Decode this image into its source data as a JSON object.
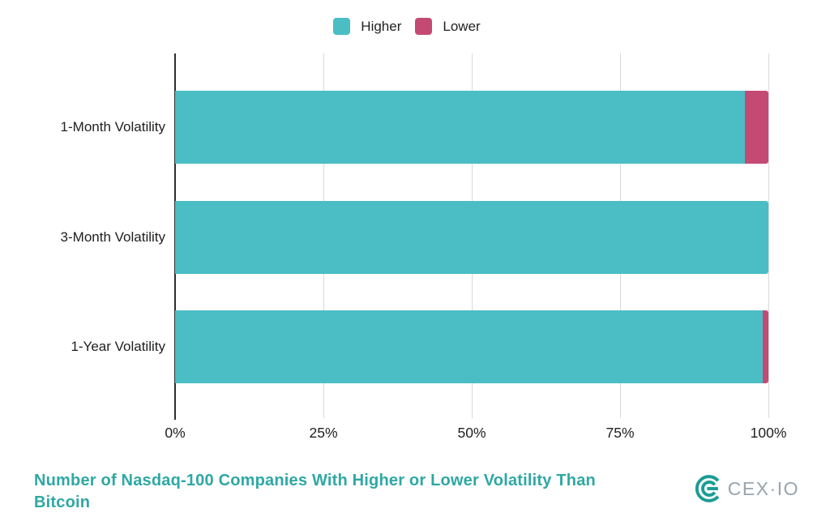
{
  "legend": {
    "items": [
      {
        "label": "Higher",
        "color": "#4abdc5"
      },
      {
        "label": "Lower",
        "color": "#c44a73"
      }
    ]
  },
  "chart_data": {
    "type": "bar",
    "orientation": "horizontal",
    "stacked": true,
    "categories": [
      "1-Month Volatility",
      "3-Month Volatility",
      "1-Year Volatility"
    ],
    "series": [
      {
        "name": "Higher",
        "color": "#4abdc5",
        "values": [
          96,
          100,
          99
        ]
      },
      {
        "name": "Lower",
        "color": "#c44a73",
        "values": [
          4,
          0,
          1
        ]
      }
    ],
    "x_ticks": [
      "0%",
      "25%",
      "50%",
      "75%",
      "100%"
    ],
    "x_tick_values": [
      0,
      25,
      50,
      75,
      100
    ],
    "xlim": [
      0,
      100
    ],
    "grid": "vertical",
    "legend_position": "top",
    "title": "Number of Nasdaq-100 Companies With Higher or Lower Volatility Than Bitcoin"
  },
  "footer": {
    "title": "Number of Nasdaq-100 Companies With Higher or Lower Volatility Than Bitcoin",
    "brand_text": "CEX·IO"
  },
  "colors": {
    "higher": "#4abdc5",
    "lower": "#c44a73",
    "title": "#2ea8a4",
    "axis_line": "#2e2e2e",
    "gridline": "#d9d9d9",
    "label_text": "#212121",
    "brand_text": "#98a4ae",
    "brand_icon": "#1b9c96"
  }
}
